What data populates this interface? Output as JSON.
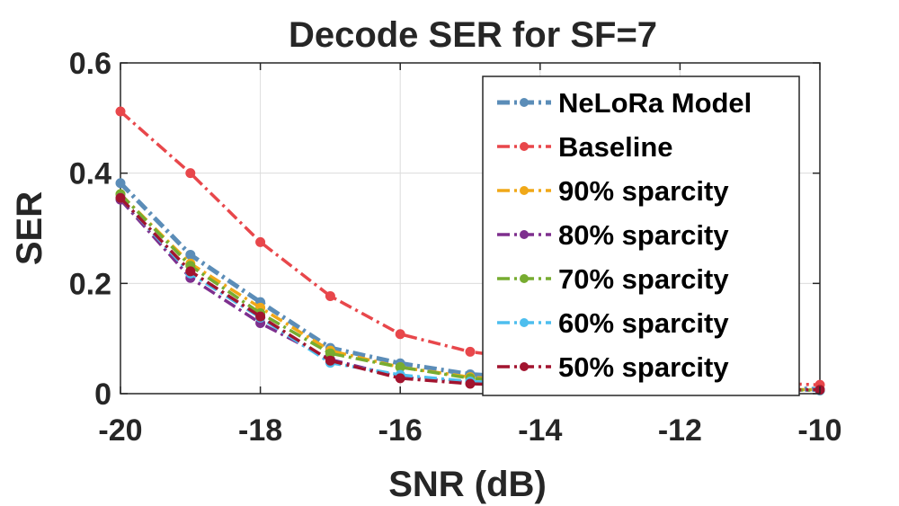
{
  "chart_data": {
    "type": "line",
    "title": "Decode SER for SF=7",
    "xlabel": "SNR (dB)",
    "ylabel": "SER",
    "xlim": [
      -20,
      -10
    ],
    "ylim": [
      0,
      0.6
    ],
    "xticks": [
      -20,
      -18,
      -16,
      -14,
      -12,
      -10
    ],
    "xtick_labels": [
      "-20",
      "-18",
      "-16",
      "-14",
      "-12",
      "-10"
    ],
    "yticks": [
      0,
      0.2,
      0.4,
      0.6
    ],
    "ytick_labels": [
      "0",
      "0.2",
      "0.4",
      "0.6"
    ],
    "grid": true,
    "legend_position": "top-right",
    "x": [
      -20,
      -19,
      -18,
      -17,
      -16,
      -15,
      -14,
      -13,
      -12,
      -11,
      -10
    ],
    "series": [
      {
        "name": "NeLoRa Model",
        "color": "#5b8db8",
        "line_style": "dash-dot",
        "marker": "circle",
        "values": [
          0.382,
          0.252,
          0.166,
          0.083,
          0.055,
          0.035,
          0.027,
          0.018,
          0.013,
          0.011,
          0.008
        ]
      },
      {
        "name": "Baseline",
        "color": "#e8474b",
        "line_style": "dash-dot",
        "marker": "circle",
        "values": [
          0.512,
          0.4,
          0.275,
          0.177,
          0.108,
          0.076,
          0.06,
          0.04,
          0.028,
          0.02,
          0.016
        ]
      },
      {
        "name": "90% sparcity",
        "color": "#f0a818",
        "line_style": "dash-dot",
        "marker": "circle",
        "values": [
          0.362,
          0.236,
          0.156,
          0.078,
          0.048,
          0.03,
          0.022,
          0.015,
          0.011,
          0.009,
          0.007
        ]
      },
      {
        "name": "80% sparcity",
        "color": "#7e2f8e",
        "line_style": "dash-dot",
        "marker": "circle",
        "values": [
          0.352,
          0.21,
          0.128,
          0.062,
          0.03,
          0.02,
          0.015,
          0.011,
          0.008,
          0.007,
          0.006
        ]
      },
      {
        "name": "70% sparcity",
        "color": "#77ac30",
        "line_style": "dash-dot",
        "marker": "circle",
        "values": [
          0.362,
          0.232,
          0.146,
          0.073,
          0.048,
          0.028,
          0.02,
          0.014,
          0.01,
          0.008,
          0.006
        ]
      },
      {
        "name": "60% sparcity",
        "color": "#4dbeee",
        "line_style": "dash-dot",
        "marker": "circle",
        "values": [
          0.355,
          0.218,
          0.138,
          0.056,
          0.034,
          0.022,
          0.016,
          0.012,
          0.009,
          0.007,
          0.006
        ]
      },
      {
        "name": "50% sparcity",
        "color": "#a2142f",
        "line_style": "dash-dot",
        "marker": "circle",
        "values": [
          0.355,
          0.222,
          0.14,
          0.06,
          0.028,
          0.018,
          0.014,
          0.01,
          0.008,
          0.007,
          0.007
        ]
      }
    ]
  }
}
